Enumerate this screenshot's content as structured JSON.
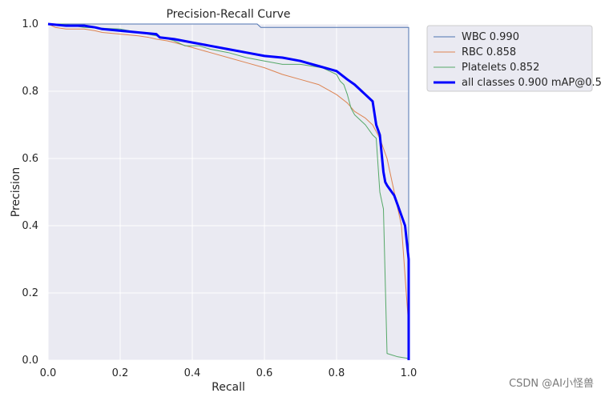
{
  "chart_data": {
    "type": "line",
    "title": "Precision-Recall Curve",
    "xlabel": "Recall",
    "ylabel": "Precision",
    "xlim": [
      0.0,
      1.0
    ],
    "ylim": [
      0.0,
      1.0
    ],
    "xticks": [
      0.0,
      0.2,
      0.4,
      0.6,
      0.8,
      1.0
    ],
    "yticks": [
      0.0,
      0.2,
      0.4,
      0.6,
      0.8,
      1.0
    ],
    "xtick_labels": [
      "0.0",
      "0.2",
      "0.4",
      "0.6",
      "0.8",
      "1.0"
    ],
    "ytick_labels": [
      "0.0",
      "0.2",
      "0.4",
      "0.6",
      "0.8",
      "1.0"
    ],
    "grid": true,
    "legend_position": "outside-top-right",
    "series": [
      {
        "name": "WBC",
        "label": "WBC 0.990",
        "color": "#4c72b0",
        "linewidth": 1,
        "x": [
          0.0,
          0.58,
          0.585,
          0.59,
          0.65,
          0.75,
          0.85,
          0.95,
          0.998,
          1.0,
          1.0
        ],
        "y": [
          1.0,
          1.0,
          0.995,
          0.99,
          0.99,
          0.99,
          0.99,
          0.99,
          0.99,
          0.99,
          0.0
        ]
      },
      {
        "name": "RBC",
        "label": "RBC 0.858",
        "color": "#dd8452",
        "linewidth": 1,
        "x": [
          0.0,
          0.02,
          0.05,
          0.08,
          0.1,
          0.13,
          0.15,
          0.2,
          0.25,
          0.28,
          0.3,
          0.33,
          0.35,
          0.4,
          0.45,
          0.5,
          0.55,
          0.6,
          0.65,
          0.7,
          0.75,
          0.8,
          0.83,
          0.85,
          0.88,
          0.9,
          0.92,
          0.94,
          0.96,
          0.98,
          0.99,
          1.0,
          1.0
        ],
        "y": [
          1.0,
          0.99,
          0.985,
          0.985,
          0.985,
          0.98,
          0.975,
          0.97,
          0.965,
          0.96,
          0.955,
          0.95,
          0.945,
          0.93,
          0.915,
          0.9,
          0.885,
          0.87,
          0.85,
          0.835,
          0.82,
          0.79,
          0.765,
          0.74,
          0.72,
          0.7,
          0.66,
          0.6,
          0.5,
          0.4,
          0.25,
          0.1,
          0.0
        ]
      },
      {
        "name": "Platelets",
        "label": "Platelets 0.852",
        "color": "#55a868",
        "linewidth": 1,
        "x": [
          0.0,
          0.04,
          0.1,
          0.2,
          0.3,
          0.35,
          0.38,
          0.42,
          0.45,
          0.5,
          0.55,
          0.6,
          0.65,
          0.7,
          0.73,
          0.76,
          0.78,
          0.8,
          0.81,
          0.82,
          0.83,
          0.84,
          0.85,
          0.86,
          0.88,
          0.9,
          0.91,
          0.92,
          0.93,
          0.94,
          0.97,
          1.0,
          1.0
        ],
        "y": [
          1.0,
          1.0,
          0.99,
          0.985,
          0.965,
          0.95,
          0.935,
          0.935,
          0.925,
          0.915,
          0.9,
          0.89,
          0.88,
          0.88,
          0.875,
          0.87,
          0.86,
          0.85,
          0.83,
          0.82,
          0.79,
          0.75,
          0.73,
          0.72,
          0.7,
          0.67,
          0.66,
          0.5,
          0.45,
          0.02,
          0.01,
          0.005,
          0.0
        ]
      },
      {
        "name": "all classes",
        "label": "all classes 0.900 mAP@0.5",
        "color": "#0000ff",
        "linewidth": 3,
        "x": [
          0.0,
          0.05,
          0.1,
          0.13,
          0.15,
          0.2,
          0.25,
          0.3,
          0.31,
          0.35,
          0.4,
          0.45,
          0.5,
          0.55,
          0.6,
          0.65,
          0.7,
          0.75,
          0.8,
          0.83,
          0.85,
          0.87,
          0.88,
          0.9,
          0.91,
          0.92,
          0.93,
          0.935,
          0.94,
          0.96,
          0.97,
          0.98,
          0.99,
          0.995,
          1.0,
          1.0
        ],
        "y": [
          1.0,
          0.995,
          0.995,
          0.99,
          0.985,
          0.98,
          0.975,
          0.97,
          0.96,
          0.955,
          0.945,
          0.935,
          0.925,
          0.915,
          0.905,
          0.9,
          0.89,
          0.875,
          0.86,
          0.835,
          0.82,
          0.8,
          0.79,
          0.77,
          0.7,
          0.67,
          0.56,
          0.53,
          0.52,
          0.49,
          0.46,
          0.43,
          0.4,
          0.35,
          0.3,
          0.0
        ]
      }
    ]
  },
  "watermark": "CSDN @AI小怪兽"
}
